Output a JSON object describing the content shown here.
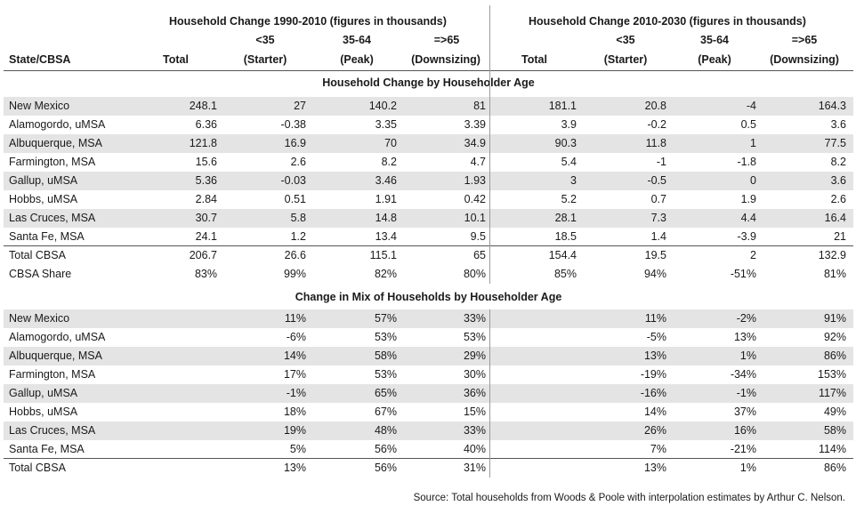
{
  "header": {
    "group1_title": "Household Change 1990-2010 (figures in thousands)",
    "group2_title": "Household Change 2010-2030 (figures in thousands)",
    "state_label": "State/CBSA",
    "total_label": "Total",
    "starter_age": "<35",
    "starter_label": "(Starter)",
    "peak_age": "35-64",
    "peak_label": "(Peak)",
    "down_age": "=>65",
    "down_label": "(Downsizing)"
  },
  "section1": {
    "title": "Household Change by Householder Age",
    "rows": [
      {
        "name": "New Mexico",
        "cells": [
          "248.1",
          "27",
          "140.2",
          "81",
          "181.1",
          "20.8",
          "-4",
          "164.3"
        ],
        "shaded": true
      },
      {
        "name": "Alamogordo, uMSA",
        "cells": [
          "6.36",
          "-0.38",
          "3.35",
          "3.39",
          "3.9",
          "-0.2",
          "0.5",
          "3.6"
        ],
        "shaded": false
      },
      {
        "name": "Albuquerque, MSA",
        "cells": [
          "121.8",
          "16.9",
          "70",
          "34.9",
          "90.3",
          "11.8",
          "1",
          "77.5"
        ],
        "shaded": true
      },
      {
        "name": "Farmington, MSA",
        "cells": [
          "15.6",
          "2.6",
          "8.2",
          "4.7",
          "5.4",
          "-1",
          "-1.8",
          "8.2"
        ],
        "shaded": false
      },
      {
        "name": "Gallup, uMSA",
        "cells": [
          "5.36",
          "-0.03",
          "3.46",
          "1.93",
          "3",
          "-0.5",
          "0",
          "3.6"
        ],
        "shaded": true
      },
      {
        "name": "Hobbs, uMSA",
        "cells": [
          "2.84",
          "0.51",
          "1.91",
          "0.42",
          "5.2",
          "0.7",
          "1.9",
          "2.6"
        ],
        "shaded": false
      },
      {
        "name": "Las Cruces, MSA",
        "cells": [
          "30.7",
          "5.8",
          "14.8",
          "10.1",
          "28.1",
          "7.3",
          "4.4",
          "16.4"
        ],
        "shaded": true
      },
      {
        "name": "Santa Fe, MSA",
        "cells": [
          "24.1",
          "1.2",
          "13.4",
          "9.5",
          "18.5",
          "1.4",
          "-3.9",
          "21"
        ],
        "shaded": false
      },
      {
        "name": "Total CBSA",
        "cells": [
          "206.7",
          "26.6",
          "115.1",
          "65",
          "154.4",
          "19.5",
          "2",
          "132.9"
        ],
        "shaded": false
      },
      {
        "name": "CBSA Share",
        "cells": [
          "83%",
          "99%",
          "82%",
          "80%",
          "85%",
          "94%",
          "-51%",
          "81%"
        ],
        "shaded": false
      }
    ]
  },
  "section2": {
    "title": "Change in Mix of Households by Householder Age",
    "rows": [
      {
        "name": "New Mexico",
        "cells": [
          "",
          "11%",
          "57%",
          "33%",
          "",
          "11%",
          "-2%",
          "91%"
        ],
        "shaded": true
      },
      {
        "name": "Alamogordo, uMSA",
        "cells": [
          "",
          "-6%",
          "53%",
          "53%",
          "",
          "-5%",
          "13%",
          "92%"
        ],
        "shaded": false
      },
      {
        "name": "Albuquerque, MSA",
        "cells": [
          "",
          "14%",
          "58%",
          "29%",
          "",
          "13%",
          "1%",
          "86%"
        ],
        "shaded": true
      },
      {
        "name": "Farmington, MSA",
        "cells": [
          "",
          "17%",
          "53%",
          "30%",
          "",
          "-19%",
          "-34%",
          "153%"
        ],
        "shaded": false
      },
      {
        "name": "Gallup, uMSA",
        "cells": [
          "",
          "-1%",
          "65%",
          "36%",
          "",
          "-16%",
          "-1%",
          "117%"
        ],
        "shaded": true
      },
      {
        "name": "Hobbs, uMSA",
        "cells": [
          "",
          "18%",
          "67%",
          "15%",
          "",
          "14%",
          "37%",
          "49%"
        ],
        "shaded": false
      },
      {
        "name": "Las Cruces, MSA",
        "cells": [
          "",
          "19%",
          "48%",
          "33%",
          "",
          "26%",
          "16%",
          "58%"
        ],
        "shaded": true
      },
      {
        "name": "Santa Fe, MSA",
        "cells": [
          "",
          "5%",
          "56%",
          "40%",
          "",
          "7%",
          "-21%",
          "114%"
        ],
        "shaded": false
      },
      {
        "name": "Total CBSA",
        "cells": [
          "",
          "13%",
          "56%",
          "31%",
          "",
          "13%",
          "1%",
          "86%"
        ],
        "shaded": false
      }
    ]
  },
  "source": "Source: Total households from Woods & Poole with interpolation estimates by Arthur C. Nelson."
}
